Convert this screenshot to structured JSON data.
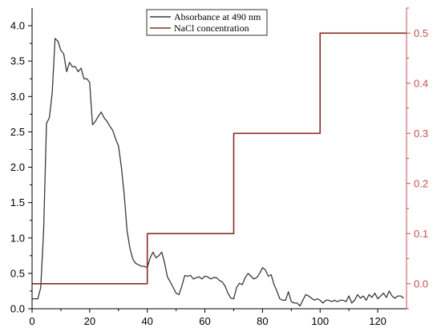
{
  "chart_data": {
    "type": "line",
    "title": "",
    "xlabel": "",
    "ylabel_left": "",
    "ylabel_right": "",
    "xlim": [
      0,
      130
    ],
    "ylim_left": [
      0,
      4.25
    ],
    "ylim_right": [
      -0.05,
      0.55
    ],
    "x_ticks": [
      0,
      20,
      40,
      60,
      80,
      100,
      120
    ],
    "y_left_ticks": [
      0.0,
      0.5,
      1.0,
      1.5,
      2.0,
      2.5,
      3.0,
      3.5,
      4.0
    ],
    "y_right_ticks": [
      0.0,
      0.1,
      0.2,
      0.3,
      0.4,
      0.5
    ],
    "grid": false,
    "legend_position": "top-center",
    "colors": {
      "absorbance": "#3a3a3a",
      "nacl": "#8b2d22",
      "right_axis": "#c0504d"
    },
    "series": [
      {
        "name": "Absorbance at 490 nm",
        "axis": "left",
        "x": [
          0,
          1,
          2,
          3,
          4,
          5,
          6,
          7,
          8,
          9,
          10,
          11,
          12,
          13,
          14,
          15,
          16,
          17,
          18,
          19,
          20,
          21,
          22,
          23,
          24,
          25,
          26,
          27,
          28,
          29,
          30,
          31,
          32,
          33,
          34,
          35,
          36,
          37,
          38,
          39,
          40,
          41,
          42,
          43,
          44,
          45,
          46,
          47,
          48,
          49,
          50,
          51,
          52,
          53,
          54,
          55,
          56,
          57,
          58,
          59,
          60,
          61,
          62,
          63,
          64,
          65,
          66,
          67,
          68,
          69,
          70,
          71,
          72,
          73,
          74,
          75,
          76,
          77,
          78,
          79,
          80,
          81,
          82,
          83,
          84,
          85,
          86,
          87,
          88,
          89,
          90,
          91,
          92,
          93,
          94,
          95,
          96,
          97,
          98,
          99,
          100,
          101,
          102,
          103,
          104,
          105,
          106,
          107,
          108,
          109,
          110,
          111,
          112,
          113,
          114,
          115,
          116,
          117,
          118,
          119,
          120,
          121,
          122,
          123,
          124,
          125,
          126,
          127,
          128,
          129
        ],
        "y": [
          0.14,
          0.14,
          0.14,
          0.3,
          1.1,
          2.62,
          2.7,
          3.05,
          3.82,
          3.78,
          3.65,
          3.6,
          3.35,
          3.48,
          3.42,
          3.42,
          3.35,
          3.4,
          3.25,
          3.25,
          3.2,
          2.6,
          2.65,
          2.72,
          2.78,
          2.7,
          2.65,
          2.58,
          2.52,
          2.4,
          2.3,
          2.0,
          1.6,
          1.1,
          0.85,
          0.7,
          0.64,
          0.62,
          0.6,
          0.6,
          0.58,
          0.72,
          0.8,
          0.72,
          0.75,
          0.8,
          0.65,
          0.45,
          0.38,
          0.3,
          0.22,
          0.2,
          0.32,
          0.47,
          0.46,
          0.47,
          0.42,
          0.44,
          0.45,
          0.42,
          0.46,
          0.45,
          0.42,
          0.44,
          0.44,
          0.4,
          0.38,
          0.32,
          0.22,
          0.15,
          0.14,
          0.3,
          0.36,
          0.34,
          0.44,
          0.5,
          0.46,
          0.42,
          0.44,
          0.5,
          0.58,
          0.55,
          0.46,
          0.48,
          0.34,
          0.25,
          0.14,
          0.12,
          0.12,
          0.24,
          0.1,
          0.08,
          0.08,
          0.04,
          0.12,
          0.2,
          0.18,
          0.15,
          0.12,
          0.14,
          0.12,
          0.08,
          0.12,
          0.12,
          0.1,
          0.12,
          0.1,
          0.12,
          0.12,
          0.1,
          0.18,
          0.08,
          0.12,
          0.2,
          0.15,
          0.18,
          0.12,
          0.2,
          0.16,
          0.22,
          0.14,
          0.18,
          0.22,
          0.16,
          0.25,
          0.18,
          0.15,
          0.18,
          0.18,
          0.15
        ]
      },
      {
        "name": "NaCl concentration",
        "axis": "right",
        "x": [
          0,
          40,
          40,
          70,
          70,
          100,
          100,
          130
        ],
        "y": [
          0.0,
          0.0,
          0.1,
          0.1,
          0.3,
          0.3,
          0.5,
          0.5
        ]
      }
    ]
  }
}
